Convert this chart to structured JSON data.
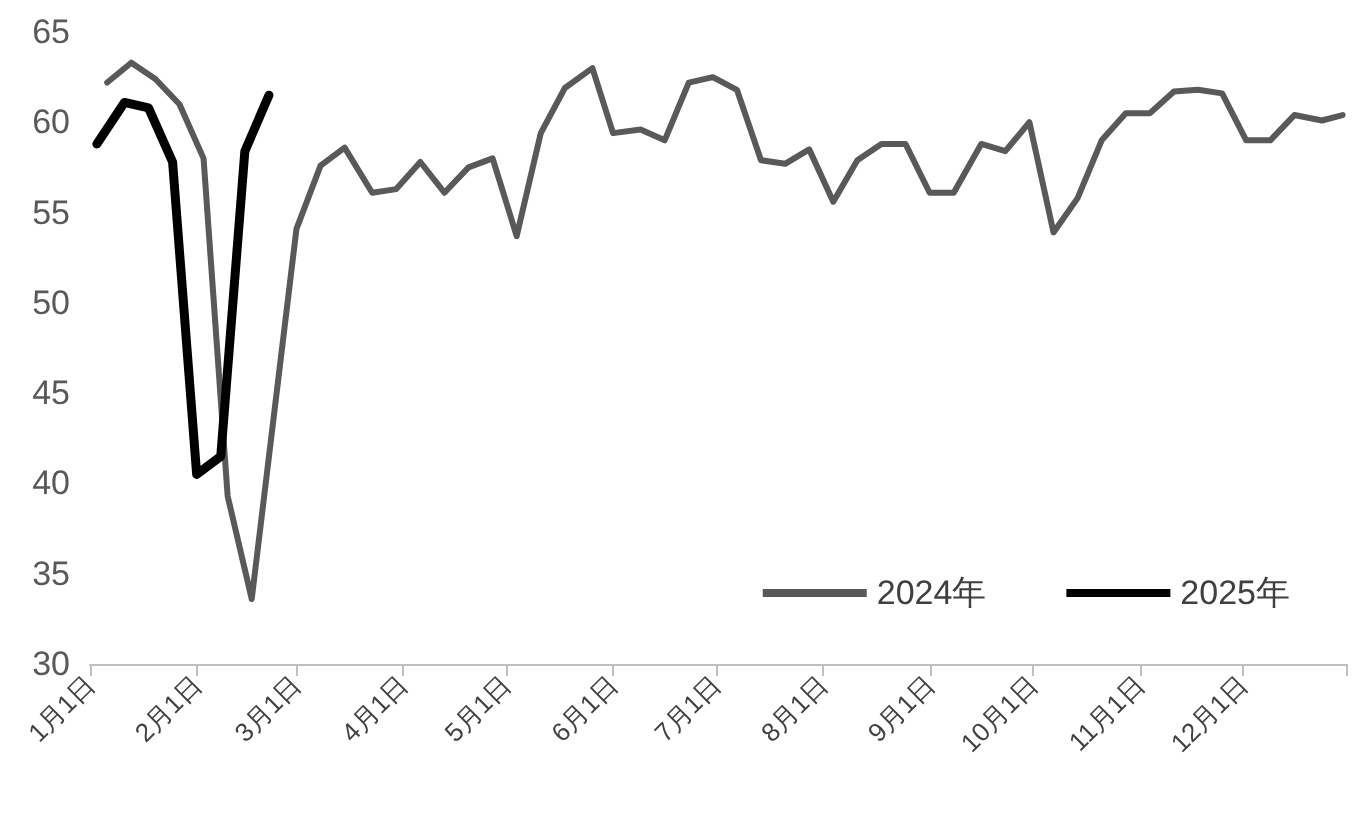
{
  "chart_data": {
    "type": "line",
    "series": [
      {
        "name": "2024年",
        "color": "#595959",
        "x": [
          "--01-06",
          "--01-13",
          "--01-20",
          "--01-27",
          "--02-03",
          "--02-10",
          "--02-17",
          "--03-01",
          "--03-08",
          "--03-15",
          "--03-23",
          "--03-30",
          "--04-06",
          "--04-13",
          "--04-20",
          "--04-27",
          "--05-04",
          "--05-11",
          "--05-18",
          "--05-26",
          "--06-01",
          "--06-09",
          "--06-16",
          "--06-23",
          "--06-30",
          "--07-07",
          "--07-14",
          "--07-21",
          "--07-28",
          "--08-04",
          "--08-11",
          "--08-18",
          "--08-25",
          "--09-01",
          "--09-08",
          "--09-16",
          "--09-23",
          "--09-30",
          "--10-07",
          "--10-14",
          "--10-21",
          "--10-28",
          "--11-04",
          "--11-11",
          "--11-18",
          "--11-25",
          "--12-02",
          "--12-09",
          "--12-16",
          "--12-24",
          "--12-30"
        ],
        "values": [
          62.2,
          63.3,
          62.4,
          61.0,
          58.0,
          39.3,
          33.6,
          54.1,
          57.6,
          58.6,
          56.1,
          56.3,
          57.8,
          56.1,
          57.5,
          58.0,
          53.7,
          59.4,
          61.9,
          63.0,
          59.4,
          59.6,
          59.0,
          62.2,
          62.5,
          61.8,
          57.9,
          57.7,
          58.5,
          55.6,
          57.9,
          58.8,
          58.8,
          56.1,
          56.1,
          58.8,
          58.4,
          60.0,
          53.9,
          55.8,
          59.0,
          60.5,
          60.5,
          61.7,
          61.8,
          61.6,
          59.0,
          59.0,
          60.4,
          60.1,
          60.4
        ]
      },
      {
        "name": "2025年",
        "color": "#000000",
        "x": [
          "--01-03",
          "--01-11",
          "--01-18",
          "--01-25",
          "--02-01",
          "--02-08",
          "--02-15",
          "--02-22"
        ],
        "values": [
          58.8,
          61.1,
          60.8,
          57.8,
          40.5,
          41.5,
          58.4,
          61.5
        ]
      }
    ],
    "xlim": [
      "--01-01",
      "--12-31"
    ],
    "xticks": [
      {
        "value": "--01-01",
        "label": "1月1日"
      },
      {
        "value": "--02-01",
        "label": "2月1日"
      },
      {
        "value": "--03-01",
        "label": "3月1日"
      },
      {
        "value": "--04-01",
        "label": "4月1日"
      },
      {
        "value": "--05-01",
        "label": "5月1日"
      },
      {
        "value": "--06-01",
        "label": "6月1日"
      },
      {
        "value": "--07-01",
        "label": "7月1日"
      },
      {
        "value": "--08-01",
        "label": "8月1日"
      },
      {
        "value": "--09-01",
        "label": "9月1日"
      },
      {
        "value": "--10-01",
        "label": "10月1日"
      },
      {
        "value": "--11-01",
        "label": "11月1日"
      },
      {
        "value": "--12-01",
        "label": "12月1日"
      },
      {
        "value": "--12-31",
        "label": null
      }
    ],
    "ylim": [
      30,
      65
    ],
    "yticks": [
      30,
      35,
      40,
      45,
      50,
      55,
      60,
      65
    ],
    "grid": false,
    "legend": "bottom right",
    "marker": "none",
    "line_style": "solid"
  }
}
